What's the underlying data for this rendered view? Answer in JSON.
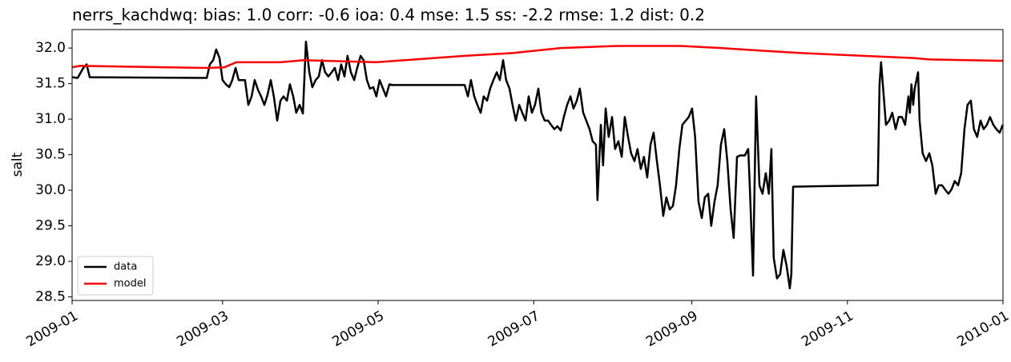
{
  "chart_data": {
    "type": "line",
    "title": "nerrs_kachdwq: bias: 1.0  corr: -0.6  ioa: 0.4  mse: 1.5  ss: -2.2  rmse: 1.2  dist: 0.2",
    "ylabel": "salt",
    "xlim": [
      0,
      365
    ],
    "ylim": [
      28.45,
      32.26
    ],
    "xticks": [
      {
        "value": 0,
        "label": "2009-01"
      },
      {
        "value": 59,
        "label": "2009-03"
      },
      {
        "value": 120,
        "label": "2009-05"
      },
      {
        "value": 181,
        "label": "2009-07"
      },
      {
        "value": 243,
        "label": "2009-09"
      },
      {
        "value": 304,
        "label": "2009-11"
      },
      {
        "value": 365,
        "label": "2010-01"
      }
    ],
    "yticks": [
      {
        "value": 28.5,
        "label": "28.5"
      },
      {
        "value": 29,
        "label": "29.0"
      },
      {
        "value": 29.5,
        "label": "29.5"
      },
      {
        "value": 30,
        "label": "30.0"
      },
      {
        "value": 30.5,
        "label": "30.5"
      },
      {
        "value": 31,
        "label": "31.0"
      },
      {
        "value": 31.5,
        "label": "31.5"
      },
      {
        "value": 32,
        "label": "32.0"
      }
    ],
    "legend": "lower left",
    "series": [
      {
        "name": "data",
        "color": "#000000",
        "x": [
          0,
          2.2,
          4.4,
          5.7,
          6.9,
          52.8,
          54.0,
          55.3,
          56.5,
          57.8,
          59.0,
          60.3,
          61.6,
          62.8,
          64.1,
          65.3,
          66.6,
          67.8,
          69.1,
          70.4,
          71.6,
          72.9,
          74.1,
          75.4,
          76.6,
          77.9,
          79.1,
          80.4,
          81.7,
          82.9,
          84.2,
          85.4,
          86.7,
          87.9,
          89.2,
          90.5,
          91.7,
          93.0,
          94.2,
          95.5,
          96.7,
          98.0,
          99.2,
          100.5,
          101.8,
          103.0,
          104.3,
          105.5,
          106.8,
          108.0,
          109.3,
          110.6,
          111.8,
          113.1,
          114.3,
          115.6,
          116.8,
          118.1,
          119.3,
          120.6,
          121.9,
          123.1,
          124.4,
          125.6,
          153.9,
          155.2,
          156.4,
          157.7,
          158.9,
          160.2,
          161.4,
          162.7,
          163.9,
          165.2,
          166.5,
          167.7,
          169.0,
          170.2,
          171.5,
          172.7,
          174.0,
          175.3,
          176.5,
          177.8,
          179.0,
          180.3,
          181.5,
          182.8,
          184.0,
          185.3,
          186.6,
          187.8,
          189.1,
          190.3,
          191.6,
          192.8,
          194.1,
          195.4,
          196.6,
          197.9,
          199.1,
          200.4,
          201.6,
          202.9,
          204.1,
          205.4,
          206.0,
          207.3,
          208.2,
          209.2,
          210.4,
          211.7,
          212.9,
          214.2,
          215.5,
          216.7,
          218.0,
          219.2,
          220.5,
          221.7,
          223.0,
          224.2,
          225.5,
          226.8,
          228.0,
          229.3,
          230.5,
          231.8,
          233.0,
          234.3,
          235.6,
          236.8,
          238.1,
          239.3,
          240.6,
          241.8,
          243.1,
          244.3,
          245.6,
          246.9,
          248.1,
          249.4,
          250.6,
          251.9,
          253.1,
          254.4,
          255.7,
          256.9,
          258.2,
          259.4,
          260.7,
          261.9,
          263.8,
          265.1,
          265.7,
          267.0,
          268.2,
          269.5,
          270.7,
          272.0,
          273.2,
          274.2,
          275.1,
          276.4,
          277.6,
          278.9,
          280.2,
          281.4,
          282.0,
          282.7,
          315.9,
          316.6,
          317.2,
          318.5,
          319.1,
          320.4,
          321.6,
          322.9,
          324.1,
          325.4,
          326.6,
          327.9,
          328.5,
          329.1,
          329.8,
          330.4,
          331.7,
          332.3,
          333.5,
          334.8,
          336.1,
          337.3,
          338.6,
          339.8,
          341.1,
          342.3,
          343.6,
          344.8,
          346.1,
          347.4,
          348.6,
          349.9,
          351.1,
          352.4,
          353.6,
          354.9,
          356.2,
          357.4,
          358.7,
          359.9,
          361.2,
          362.4,
          363.7,
          364.9
        ],
        "values": [
          31.59,
          31.58,
          31.72,
          31.77,
          31.59,
          31.58,
          31.77,
          31.83,
          31.98,
          31.86,
          31.55,
          31.49,
          31.45,
          31.55,
          31.72,
          31.55,
          31.55,
          31.55,
          31.2,
          31.32,
          31.55,
          31.41,
          31.32,
          31.2,
          31.34,
          31.55,
          31.32,
          30.98,
          31.26,
          31.32,
          31.26,
          31.49,
          31.32,
          31.09,
          31.2,
          31.08,
          32.09,
          31.66,
          31.45,
          31.55,
          31.6,
          31.83,
          31.66,
          31.6,
          31.66,
          31.72,
          31.55,
          31.77,
          31.6,
          31.89,
          31.66,
          31.55,
          31.72,
          31.89,
          31.83,
          31.55,
          31.43,
          31.45,
          31.32,
          31.55,
          31.43,
          31.32,
          31.49,
          31.48,
          31.48,
          31.32,
          31.55,
          31.32,
          31.2,
          31.09,
          31.32,
          31.26,
          31.43,
          31.55,
          31.66,
          31.55,
          31.83,
          31.55,
          31.43,
          31.2,
          30.98,
          31.2,
          31.09,
          30.98,
          31.32,
          31.09,
          31.2,
          31.43,
          31.09,
          30.98,
          30.98,
          30.92,
          30.86,
          30.9,
          30.84,
          31.03,
          31.2,
          31.32,
          31.15,
          31.26,
          31.43,
          31.09,
          30.98,
          30.86,
          30.69,
          30.64,
          29.86,
          30.92,
          30.35,
          31.15,
          30.75,
          31.03,
          30.58,
          30.69,
          30.47,
          31.03,
          30.75,
          30.52,
          30.41,
          30.58,
          30.3,
          30.47,
          30.18,
          30.64,
          30.81,
          30.41,
          30.07,
          29.64,
          29.9,
          29.73,
          29.78,
          30.07,
          30.58,
          30.92,
          30.98,
          31.03,
          31.15,
          30.75,
          29.84,
          29.61,
          29.9,
          29.95,
          29.5,
          29.84,
          30.07,
          30.64,
          30.86,
          30.41,
          29.73,
          29.33,
          30.47,
          30.49,
          30.49,
          30.58,
          30.07,
          28.8,
          31.32,
          30.07,
          29.95,
          30.24,
          29.95,
          30.58,
          29.05,
          28.76,
          28.82,
          29.16,
          28.93,
          28.62,
          28.82,
          30.05,
          30.07,
          31.49,
          31.8,
          31.2,
          30.92,
          30.98,
          31.09,
          30.86,
          31.03,
          31.03,
          30.92,
          31.32,
          31.09,
          31.49,
          31.2,
          31.43,
          31.66,
          30.98,
          30.52,
          30.41,
          30.52,
          30.35,
          29.95,
          30.07,
          30.07,
          30.01,
          29.95,
          30.01,
          30.13,
          30.07,
          30.24,
          30.86,
          31.2,
          31.26,
          30.86,
          30.75,
          30.98,
          30.86,
          30.92,
          31.03,
          30.92,
          30.86,
          30.81,
          30.92
        ]
      },
      {
        "name": "model",
        "color": "#ff0000",
        "x": [
          0,
          3.1,
          52.8,
          59.7,
          64.4,
          81.7,
          91.1,
          119.3,
          153.9,
          172.7,
          191.6,
          213.6,
          238.7,
          254.4,
          267.0,
          285.8,
          329.8,
          336.1,
          364.9
        ],
        "values": [
          31.73,
          31.75,
          31.72,
          31.73,
          31.8,
          31.8,
          31.83,
          31.8,
          31.89,
          31.93,
          32.0,
          32.03,
          32.03,
          32.0,
          31.97,
          31.93,
          31.86,
          31.84,
          31.82
        ]
      }
    ]
  }
}
